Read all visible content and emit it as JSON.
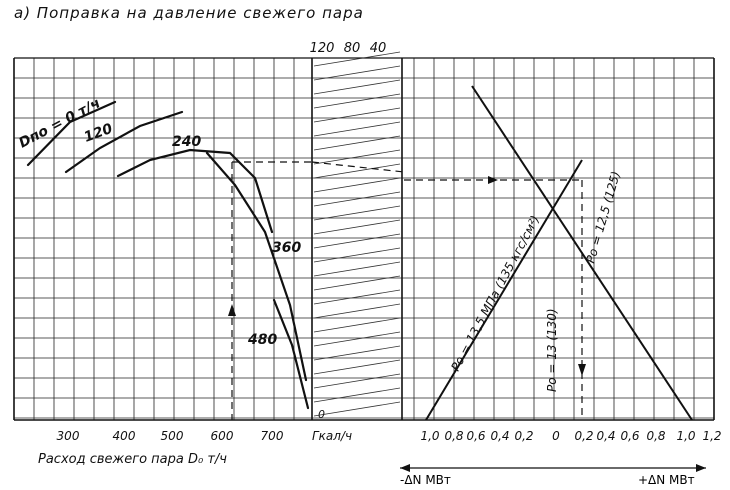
{
  "chart_data": {
    "type": "line",
    "title": "а) Поправка  на  давление  свежего  пара",
    "xlabel": "Расход свежего пара D₀ т/ч",
    "left_panel": {
      "x_ticks": [
        "300",
        "400",
        "500",
        "600",
        "700"
      ],
      "xlim": [
        210,
        800
      ],
      "series": [
        {
          "name": "Dпо = 0 т/ч",
          "label": "Dпо = 0 т/ч",
          "points": [
            [
              220,
              160
            ],
            [
              330,
              208
            ]
          ]
        },
        {
          "name": "120",
          "label": "120",
          "points": [
            [
              300,
              123
            ],
            [
              360,
              153
            ],
            [
              440,
              190
            ]
          ]
        },
        {
          "name": "240",
          "label": "240",
          "points": [
            [
              390,
              120
            ],
            [
              450,
              142
            ],
            [
              530,
              148
            ],
            [
              590,
              140
            ],
            [
              650,
              115
            ],
            [
              700,
              75
            ]
          ]
        },
        {
          "name": "360",
          "label": "360",
          "points": [
            [
              570,
              150
            ],
            [
              620,
              125
            ],
            [
              680,
              90
            ],
            [
              730,
              32
            ]
          ]
        },
        {
          "name": "480",
          "label": "480",
          "points": [
            [
              700,
              80
            ],
            [
              735,
              45
            ],
            [
              765,
              8
            ]
          ]
        }
      ]
    },
    "middle_panel": {
      "axis_label": "Гкал/ч",
      "top_ticks": [
        "120",
        "80",
        "40"
      ],
      "zero_label": "0"
    },
    "right_panel": {
      "x_ticks": [
        "1,0",
        "0,8",
        "0,6",
        "0,4",
        "0,2",
        "0",
        "0,2",
        "0,4",
        "0,6",
        "0,8",
        "1,0",
        "1,2"
      ],
      "left_axis_label": "-ΔN МВт",
      "right_axis_label": "+ΔN МВт",
      "lines": [
        {
          "label": "Pо = 13,5 МПа (135 кгс/см²)",
          "points": [
            [
              -1.0,
              0
            ],
            [
              0.75,
              350
            ]
          ]
        },
        {
          "label": "Pо = 12,5 (125)",
          "points": [
            [
              -0.5,
              350
            ],
            [
              1.05,
              0
            ]
          ]
        },
        {
          "label": "Pо = 13 (130)"
        }
      ]
    },
    "grid": true
  }
}
